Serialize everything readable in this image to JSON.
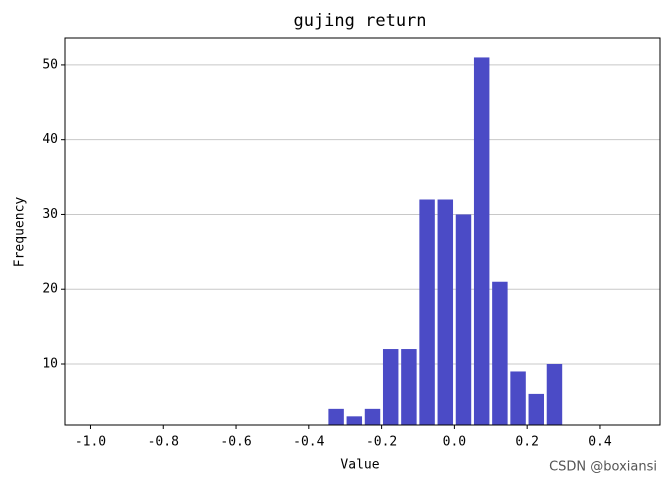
{
  "chart_data": {
    "type": "histogram",
    "title": "gujing return",
    "xlabel": "Value",
    "ylabel": "Frequency",
    "bins": [
      -0.35,
      -0.3,
      -0.25,
      -0.2,
      -0.15,
      -0.1,
      -0.05,
      0.0,
      0.05,
      0.1,
      0.15,
      0.2,
      0.25,
      0.3
    ],
    "values": [
      4,
      3,
      4,
      12,
      12,
      32,
      32,
      30,
      51,
      21,
      9,
      6,
      10
    ],
    "color": "#4b4bc6",
    "xlim": [
      -1.07,
      0.565
    ],
    "ylim": [
      1.84,
      53.6
    ],
    "xticks": [
      {
        "value": -1.0,
        "label": "-1.0"
      },
      -0.8,
      -0.6,
      -0.4,
      -0.2,
      {
        "value": 0.0,
        "label": "0.0"
      },
      0.2,
      0.4
    ],
    "yticks": [
      10,
      20,
      30,
      40,
      50
    ],
    "grid": "y",
    "watermark": "CSDN @boxiansi"
  }
}
